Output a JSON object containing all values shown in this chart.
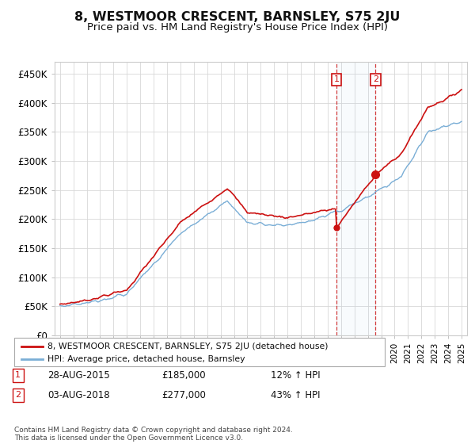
{
  "title": "8, WESTMOOR CRESCENT, BARNSLEY, S75 2JU",
  "subtitle": "Price paid vs. HM Land Registry's House Price Index (HPI)",
  "title_fontsize": 11.5,
  "subtitle_fontsize": 9.5,
  "ylabel_ticks": [
    "£0",
    "£50K",
    "£100K",
    "£150K",
    "£200K",
    "£250K",
    "£300K",
    "£350K",
    "£400K",
    "£450K"
  ],
  "ytick_values": [
    0,
    50000,
    100000,
    150000,
    200000,
    250000,
    300000,
    350000,
    400000,
    450000
  ],
  "ylim": [
    0,
    470000
  ],
  "xlim_start": 1994.6,
  "xlim_end": 2025.4,
  "hpi_color": "#7aaed6",
  "price_color": "#cc1111",
  "background_color": "#ffffff",
  "grid_color": "#d8d8d8",
  "sale1_x": 2015.65,
  "sale1_y": 185000,
  "sale2_x": 2018.58,
  "sale2_y": 277000,
  "legend_entries": [
    "8, WESTMOOR CRESCENT, BARNSLEY, S75 2JU (detached house)",
    "HPI: Average price, detached house, Barnsley"
  ],
  "annotation_table": [
    [
      "1",
      "28-AUG-2015",
      "£185,000",
      "12% ↑ HPI"
    ],
    [
      "2",
      "03-AUG-2018",
      "£277,000",
      "43% ↑ HPI"
    ]
  ],
  "footer": "Contains HM Land Registry data © Crown copyright and database right 2024.\nThis data is licensed under the Open Government Licence v3.0."
}
